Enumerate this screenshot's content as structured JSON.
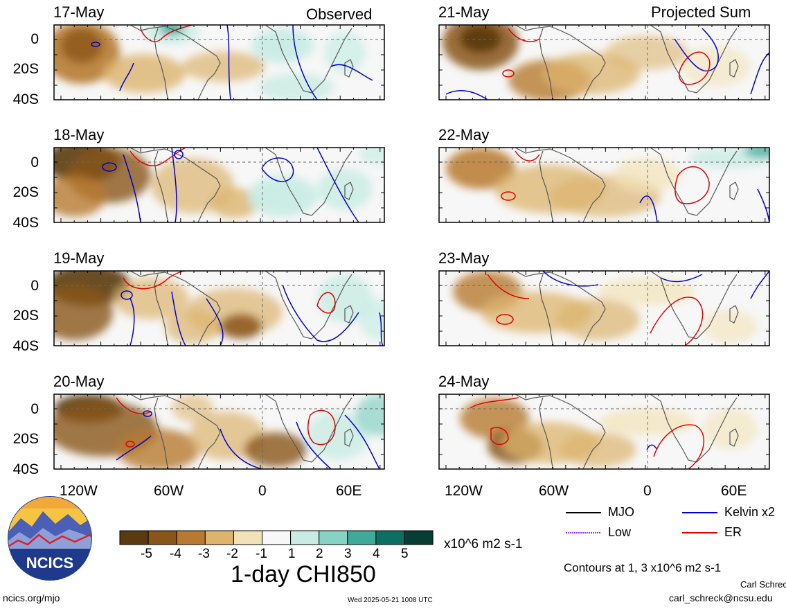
{
  "header": {
    "left_title": "Observed",
    "right_title": "Projected Sum"
  },
  "panels": {
    "left": [
      "17-May",
      "18-May",
      "19-May",
      "20-May"
    ],
    "right": [
      "21-May",
      "22-May",
      "23-May",
      "24-May"
    ]
  },
  "axes": {
    "y_ticks": [
      "0",
      "20S",
      "40S"
    ],
    "x_ticks": [
      "120W",
      "60W",
      "0",
      "60E"
    ]
  },
  "colorbar": {
    "tick_labels": [
      "-5",
      "-4",
      "-3",
      "-2",
      "-1",
      "1",
      "2",
      "3",
      "4",
      "5"
    ],
    "colors": [
      "#5a3a0e",
      "#8a5518",
      "#b77a30",
      "#dcb46e",
      "#f2e2b7",
      "#f7f7f7",
      "#c8ece4",
      "#86d2c5",
      "#3fa99a",
      "#0d6f64",
      "#063d34"
    ],
    "units": "x10^6 m2 s-1",
    "title": "1-day CHI850"
  },
  "legend": {
    "items": [
      {
        "label": "MJO",
        "color": "#000000"
      },
      {
        "label": "Kelvin x2",
        "color": "#0000cc"
      },
      {
        "label": "Low",
        "color": "#9b30ff"
      },
      {
        "label": "ER",
        "color": "#e00000"
      }
    ],
    "contours_note": "Contours at 1, 3 x10^6 m2 s-1"
  },
  "footer": {
    "left_url": "ncics.org/mjo",
    "timestamp": "Wed 2025-05-21 1008 UTC",
    "author": "Carl Schreck",
    "email": "carl_schreck@ncsu.edu"
  },
  "logo": {
    "text": "NCICS"
  }
}
